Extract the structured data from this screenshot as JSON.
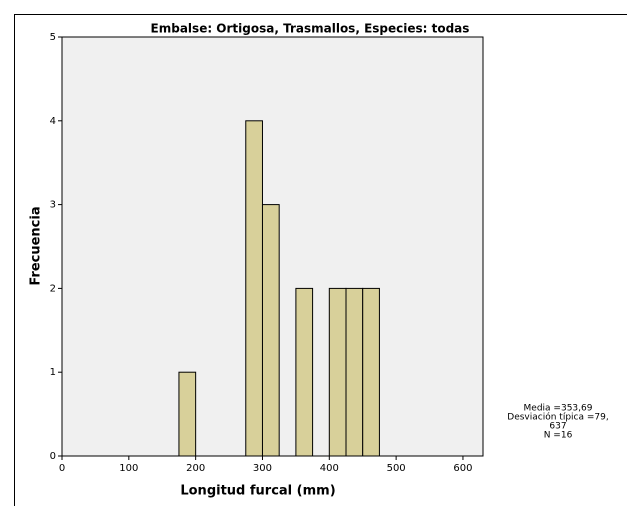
{
  "chart_data": {
    "type": "histogram",
    "title": "Embalse: Ortigosa, Trasmallos, Especies: todas",
    "x_label": "Longitud furcal (mm)",
    "y_label": "Frecuencia",
    "bins": [
      175,
      200,
      225,
      250,
      275,
      300,
      325,
      350,
      375,
      400,
      425,
      450,
      475
    ],
    "values": [
      1,
      0,
      0,
      0,
      4,
      3,
      0,
      2,
      0,
      2,
      2,
      2
    ],
    "color": "#d8d09a",
    "xlim": [
      0,
      630
    ],
    "xticks": [
      0,
      100,
      200,
      300,
      400,
      500,
      600
    ],
    "ylim": [
      0,
      5
    ],
    "yticks": [
      0,
      1,
      2,
      3,
      4,
      5
    ],
    "stats": [
      "Media =353,69",
      "Desviación típica =79,",
      "637",
      "N =16"
    ]
  }
}
